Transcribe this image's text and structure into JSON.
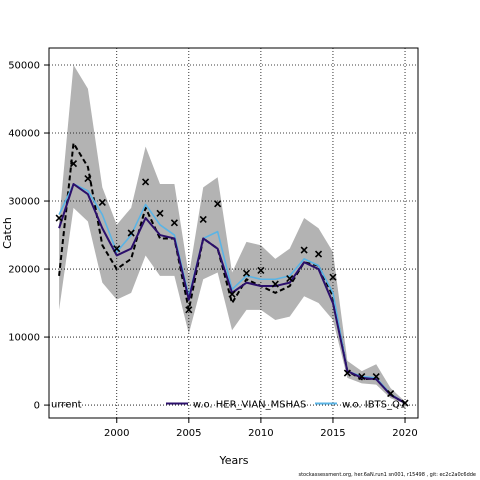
{
  "chart_data": {
    "type": "line",
    "title": "",
    "xlabel": "Years",
    "ylabel": "Catch",
    "xlim": [
      1995.3,
      2020.9
    ],
    "ylim": [
      -1900,
      52500
    ],
    "xticks": [
      2000,
      2005,
      2010,
      2015,
      2020
    ],
    "yticks": [
      0,
      10000,
      20000,
      30000,
      40000,
      50000
    ],
    "grid": true,
    "legend_position": "bottom",
    "legend": [
      {
        "label": "urrent",
        "color": "#000000"
      },
      {
        "label": "w.o. HER_VIAN_MSHAS",
        "color": "#2b0f6b"
      },
      {
        "label": "w.o. IBTS_Q1",
        "color": "#5ab4e6"
      }
    ],
    "colors": {
      "band": "#b3b3b3",
      "current": "#000000",
      "her_vian": "#2b0f6b",
      "ibts": "#5ab4e6",
      "observed": "#000000"
    },
    "x": [
      1996,
      1997,
      1998,
      1999,
      2000,
      2001,
      2002,
      2003,
      2004,
      2005,
      2006,
      2007,
      2008,
      2009,
      2010,
      2011,
      2012,
      2013,
      2014,
      2015,
      2016,
      2017,
      2018,
      2019,
      2020
    ],
    "series": [
      {
        "name": "current",
        "style": "dashed",
        "values": [
          19000,
          38500,
          35000,
          23500,
          20000,
          21500,
          29000,
          24500,
          24500,
          14000,
          24500,
          23000,
          15000,
          18500,
          17500,
          16500,
          17500,
          21000,
          20500,
          16000,
          5000,
          3800,
          3900,
          1500,
          300
        ]
      },
      {
        "name": "w.o. HER_VIAN_MSHAS",
        "style": "solid",
        "values": [
          26000,
          32500,
          31000,
          26000,
          22000,
          23000,
          27500,
          25000,
          24500,
          15500,
          24500,
          23000,
          16500,
          18000,
          17500,
          17500,
          18000,
          21000,
          20000,
          15000,
          5000,
          4000,
          3800,
          1500,
          300
        ]
      },
      {
        "name": "w.o. IBTS_Q1",
        "style": "solid",
        "values": [
          28000,
          32500,
          31500,
          28000,
          22500,
          25000,
          29500,
          26500,
          25000,
          16000,
          24500,
          25500,
          17000,
          19000,
          18500,
          18500,
          19000,
          21500,
          20500,
          16500,
          5000,
          4200,
          4000,
          1600,
          300
        ]
      }
    ],
    "band": {
      "lower": [
        14000,
        29000,
        27000,
        18000,
        15500,
        16500,
        22000,
        19000,
        19000,
        10500,
        18500,
        19500,
        11000,
        14000,
        14000,
        12500,
        13000,
        16000,
        15000,
        12500,
        4000,
        3200,
        3000,
        1000,
        200
      ],
      "upper": [
        27000,
        50000,
        46500,
        32000,
        26500,
        29000,
        38000,
        32500,
        32500,
        19000,
        32000,
        33500,
        19500,
        24000,
        23500,
        21500,
        23000,
        27500,
        26000,
        22500,
        6500,
        5000,
        6000,
        2500,
        500
      ]
    },
    "observed": {
      "marker": "x",
      "x": [
        1996,
        1997,
        1998,
        1999,
        2000,
        2001,
        2002,
        2003,
        2004,
        2005,
        2006,
        2007,
        2008,
        2009,
        2010,
        2011,
        2012,
        2013,
        2014,
        2015,
        2016,
        2017,
        2018,
        2019,
        2020
      ],
      "y": [
        27500,
        35500,
        33300,
        29800,
        23000,
        25300,
        32800,
        28200,
        26800,
        14000,
        27300,
        29600,
        16300,
        19400,
        19800,
        17800,
        18600,
        22800,
        22200,
        18800,
        4700,
        4200,
        4200,
        1700,
        300
      ]
    }
  },
  "watermark": "stockassessment.org, her.6aN.run1 sn001, r15498 , git: ec2c2a0c6dde"
}
